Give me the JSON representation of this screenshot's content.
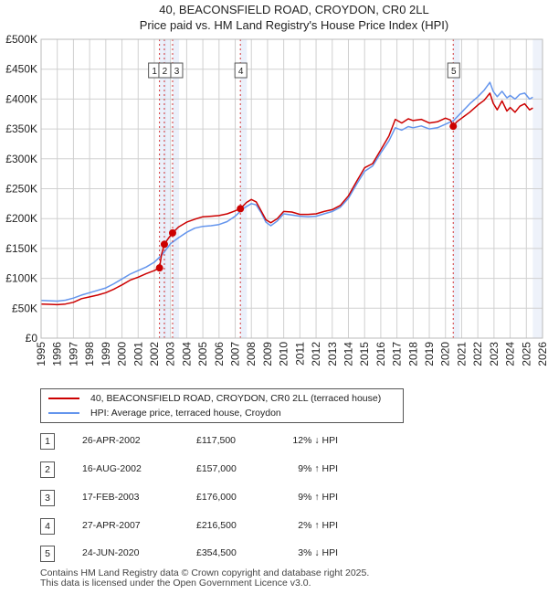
{
  "chart_data": {
    "type": "line",
    "title": "40, BEACONSFIELD ROAD, CROYDON, CR0 2LL",
    "subtitle": "Price paid vs. HM Land Registry's House Price Index (HPI)",
    "ylim": [
      0,
      500000
    ],
    "xlim": [
      1995,
      2026
    ],
    "y_ticks": [
      {
        "value": 0,
        "label": "£0"
      },
      {
        "value": 50000,
        "label": "£50K"
      },
      {
        "value": 100000,
        "label": "£100K"
      },
      {
        "value": 150000,
        "label": "£150K"
      },
      {
        "value": 200000,
        "label": "£200K"
      },
      {
        "value": 250000,
        "label": "£250K"
      },
      {
        "value": 300000,
        "label": "£300K"
      },
      {
        "value": 350000,
        "label": "£350K"
      },
      {
        "value": 400000,
        "label": "£400K"
      },
      {
        "value": 450000,
        "label": "£450K"
      },
      {
        "value": 500000,
        "label": "£500K"
      }
    ],
    "x_ticks": [
      "1995",
      "1996",
      "1997",
      "1998",
      "1999",
      "2000",
      "2001",
      "2002",
      "2003",
      "2004",
      "2005",
      "2006",
      "2007",
      "2008",
      "2009",
      "2010",
      "2011",
      "2012",
      "2013",
      "2014",
      "2015",
      "2016",
      "2017",
      "2018",
      "2019",
      "2020",
      "2021",
      "2022",
      "2023",
      "2024",
      "2025",
      "2026"
    ],
    "series": [
      {
        "name": "40, BEACONSFIELD ROAD, CROYDON, CR0 2LL (terraced house)",
        "color": "#cc0000",
        "points": [
          [
            1995.0,
            57000
          ],
          [
            1995.5,
            56500
          ],
          [
            1996.0,
            56000
          ],
          [
            1996.5,
            57000
          ],
          [
            1997.0,
            60000
          ],
          [
            1997.5,
            66000
          ],
          [
            1998.0,
            69000
          ],
          [
            1998.5,
            72000
          ],
          [
            1999.0,
            76000
          ],
          [
            1999.5,
            82000
          ],
          [
            2000.0,
            89000
          ],
          [
            2000.5,
            97000
          ],
          [
            2001.0,
            102000
          ],
          [
            2001.5,
            108000
          ],
          [
            2002.0,
            113000
          ],
          [
            2002.32,
            117500
          ],
          [
            2002.45,
            140000
          ],
          [
            2002.62,
            157000
          ],
          [
            2002.9,
            168000
          ],
          [
            2003.13,
            176000
          ],
          [
            2003.5,
            186000
          ],
          [
            2004.0,
            194000
          ],
          [
            2004.5,
            199000
          ],
          [
            2005.0,
            203000
          ],
          [
            2005.5,
            204000
          ],
          [
            2006.0,
            205000
          ],
          [
            2006.5,
            208000
          ],
          [
            2007.0,
            213000
          ],
          [
            2007.32,
            216500
          ],
          [
            2007.7,
            227000
          ],
          [
            2008.0,
            232000
          ],
          [
            2008.3,
            228000
          ],
          [
            2008.6,
            213000
          ],
          [
            2008.9,
            198000
          ],
          [
            2009.2,
            193000
          ],
          [
            2009.6,
            200000
          ],
          [
            2010.0,
            212000
          ],
          [
            2010.5,
            211000
          ],
          [
            2011.0,
            207000
          ],
          [
            2011.5,
            207000
          ],
          [
            2012.0,
            208000
          ],
          [
            2012.5,
            212000
          ],
          [
            2013.0,
            215000
          ],
          [
            2013.5,
            222000
          ],
          [
            2014.0,
            238000
          ],
          [
            2014.5,
            262000
          ],
          [
            2015.0,
            285000
          ],
          [
            2015.5,
            292000
          ],
          [
            2016.0,
            315000
          ],
          [
            2016.5,
            338000
          ],
          [
            2016.9,
            366000
          ],
          [
            2017.3,
            360000
          ],
          [
            2017.7,
            367000
          ],
          [
            2018.0,
            364000
          ],
          [
            2018.5,
            366000
          ],
          [
            2019.0,
            360000
          ],
          [
            2019.5,
            362000
          ],
          [
            2020.0,
            368000
          ],
          [
            2020.3,
            365000
          ],
          [
            2020.48,
            354500
          ],
          [
            2020.7,
            362000
          ],
          [
            2021.0,
            368000
          ],
          [
            2021.5,
            378000
          ],
          [
            2022.0,
            390000
          ],
          [
            2022.4,
            398000
          ],
          [
            2022.75,
            410000
          ],
          [
            2022.95,
            393000
          ],
          [
            2023.2,
            382000
          ],
          [
            2023.5,
            397000
          ],
          [
            2023.8,
            380000
          ],
          [
            2024.0,
            386000
          ],
          [
            2024.3,
            378000
          ],
          [
            2024.6,
            388000
          ],
          [
            2024.9,
            392000
          ],
          [
            2025.2,
            382000
          ],
          [
            2025.4,
            385000
          ]
        ]
      },
      {
        "name": "HPI: Average price, terraced house, Croydon",
        "color": "#6495ed",
        "points": [
          [
            1995.0,
            63000
          ],
          [
            1995.5,
            62500
          ],
          [
            1996.0,
            62000
          ],
          [
            1996.5,
            63500
          ],
          [
            1997.0,
            67000
          ],
          [
            1997.5,
            72000
          ],
          [
            1998.0,
            76000
          ],
          [
            1998.5,
            80000
          ],
          [
            1999.0,
            84000
          ],
          [
            1999.5,
            91000
          ],
          [
            2000.0,
            99000
          ],
          [
            2000.5,
            107000
          ],
          [
            2001.0,
            113000
          ],
          [
            2001.5,
            119000
          ],
          [
            2002.0,
            127000
          ],
          [
            2002.5,
            140000
          ],
          [
            2003.0,
            158000
          ],
          [
            2003.5,
            168000
          ],
          [
            2004.0,
            177000
          ],
          [
            2004.5,
            184000
          ],
          [
            2005.0,
            187000
          ],
          [
            2005.5,
            188000
          ],
          [
            2006.0,
            190000
          ],
          [
            2006.5,
            195000
          ],
          [
            2007.0,
            204000
          ],
          [
            2007.5,
            217000
          ],
          [
            2008.0,
            225000
          ],
          [
            2008.3,
            223000
          ],
          [
            2008.6,
            210000
          ],
          [
            2008.9,
            194000
          ],
          [
            2009.2,
            188000
          ],
          [
            2009.6,
            196000
          ],
          [
            2010.0,
            208000
          ],
          [
            2010.5,
            206000
          ],
          [
            2011.0,
            204000
          ],
          [
            2011.5,
            203000
          ],
          [
            2012.0,
            204000
          ],
          [
            2012.5,
            208000
          ],
          [
            2013.0,
            212000
          ],
          [
            2013.5,
            219000
          ],
          [
            2014.0,
            234000
          ],
          [
            2014.5,
            257000
          ],
          [
            2015.0,
            279000
          ],
          [
            2015.5,
            288000
          ],
          [
            2016.0,
            310000
          ],
          [
            2016.5,
            330000
          ],
          [
            2016.9,
            352000
          ],
          [
            2017.3,
            348000
          ],
          [
            2017.7,
            354000
          ],
          [
            2018.0,
            352000
          ],
          [
            2018.5,
            355000
          ],
          [
            2019.0,
            350000
          ],
          [
            2019.5,
            352000
          ],
          [
            2020.0,
            358000
          ],
          [
            2020.5,
            364000
          ],
          [
            2021.0,
            378000
          ],
          [
            2021.5,
            392000
          ],
          [
            2022.0,
            404000
          ],
          [
            2022.4,
            415000
          ],
          [
            2022.75,
            428000
          ],
          [
            2022.95,
            413000
          ],
          [
            2023.2,
            404000
          ],
          [
            2023.5,
            413000
          ],
          [
            2023.8,
            402000
          ],
          [
            2024.0,
            406000
          ],
          [
            2024.3,
            400000
          ],
          [
            2024.6,
            408000
          ],
          [
            2024.9,
            410000
          ],
          [
            2025.2,
            400000
          ],
          [
            2025.4,
            403000
          ]
        ]
      }
    ],
    "sales": [
      {
        "num": "1",
        "date": "26-APR-2002",
        "price": "£117,500",
        "hpi": "12% ↓ HPI",
        "year": 2002.32,
        "value": 117500
      },
      {
        "num": "2",
        "date": "16-AUG-2002",
        "price": "£157,000",
        "hpi": "9% ↑ HPI",
        "year": 2002.62,
        "value": 157000
      },
      {
        "num": "3",
        "date": "17-FEB-2003",
        "price": "£176,000",
        "hpi": "9% ↑ HPI",
        "year": 2003.13,
        "value": 176000
      },
      {
        "num": "4",
        "date": "27-APR-2007",
        "price": "£216,500",
        "hpi": "2% ↑ HPI",
        "year": 2007.32,
        "value": 216500
      },
      {
        "num": "5",
        "date": "24-JUN-2020",
        "price": "£354,500",
        "hpi": "3% ↓ HPI",
        "year": 2020.48,
        "value": 354500
      }
    ],
    "future_from": 2025.4
  },
  "legend": {
    "property_label": "40, BEACONSFIELD ROAD, CROYDON, CR0 2LL (terraced house)",
    "hpi_label": "HPI: Average price, terraced house, Croydon"
  },
  "footer": {
    "line1": "Contains HM Land Registry data © Crown copyright and database right 2025.",
    "line2": "This data is licensed under the Open Government Licence v3.0."
  },
  "colors": {
    "property": "#cc0000",
    "hpi": "#6495ed",
    "shade": "#dde6f6"
  }
}
